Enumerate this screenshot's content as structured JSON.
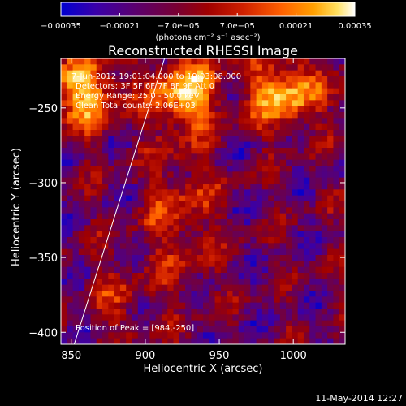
{
  "chart_data": {
    "type": "heatmap",
    "title": "Reconstructed RHESSI Image",
    "xlabel": "Heliocentric X (arcsec)",
    "ylabel": "Heliocentric Y (arcsec)",
    "xlim": [
      843,
      1035
    ],
    "ylim": [
      -408,
      -217
    ],
    "x_ticks": [
      850,
      900,
      950,
      1000
    ],
    "y_ticks": [
      -250,
      -300,
      -350,
      -400
    ],
    "colorbar": {
      "units": "(photons cm⁻² s⁻¹ asec⁻²)",
      "range": [
        -0.00035,
        0.00035
      ],
      "tick_values": [
        -0.00035,
        -0.00021,
        -7e-05,
        7e-05,
        0.00021,
        0.00035
      ],
      "tick_labels": [
        "−0.00035",
        "−0.00021",
        "−7.0e−05",
        "7.0e−05",
        "0.00021",
        "0.00035"
      ],
      "colormap": [
        "#0000d0",
        "#3a00a8",
        "#5a0070",
        "#7a0030",
        "#a00000",
        "#d02000",
        "#ff6000",
        "#ffa000",
        "#ffe060",
        "#ffffff"
      ]
    },
    "annotations": {
      "time_range": "7-Jun-2012 19:01:04.000 to 19:03:08.000",
      "detectors": "Detectors: 3F 5F 6F 7F 8F 9F  Att 0",
      "energy_range": "Energy Range: 25.0 - 50.0 keV",
      "method": "Clean     Total counts: 2.06E+03",
      "peak": "Position of Peak = [984,-250]"
    },
    "limb_line": {
      "x": [
        852,
        913
      ],
      "y": [
        -408,
        -217
      ]
    },
    "peak_position": [
      984,
      -250
    ],
    "grid": false
  },
  "footer": {
    "date": "11-May-2014 12:27"
  }
}
